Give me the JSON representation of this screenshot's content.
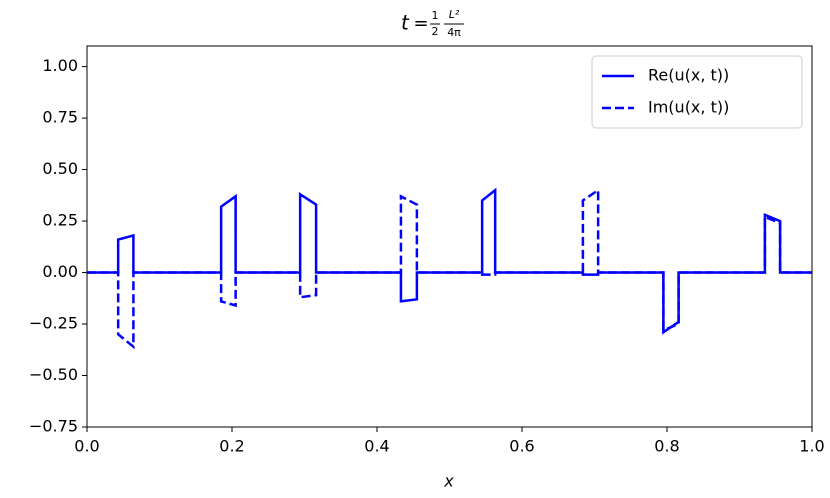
{
  "chart_data": {
    "type": "line",
    "title": {
      "variable": "t",
      "equals": "=",
      "fraction_1": {
        "numerator": "1",
        "denominator": "2"
      },
      "fraction_2": {
        "numerator": "L²",
        "denominator": "4π"
      }
    },
    "x_label": "x",
    "x": [
      0,
      0.043,
      0.043,
      0.064,
      0.064,
      0.185,
      0.185,
      0.205,
      0.205,
      0.294,
      0.294,
      0.316,
      0.316,
      0.433,
      0.433,
      0.455,
      0.455,
      0.545,
      0.545,
      0.563,
      0.563,
      0.684,
      0.684,
      0.705,
      0.705,
      0.795,
      0.795,
      0.816,
      0.816,
      0.935,
      0.935,
      0.956,
      0.956,
      1.0
    ],
    "series": [
      {
        "name": "Re(u(x, t))",
        "color": "#0000ff",
        "linestyle": "solid",
        "values": [
          0,
          0,
          0.16,
          0.18,
          0,
          0,
          0.32,
          0.37,
          0,
          0,
          0.38,
          0.33,
          0,
          0,
          -0.14,
          -0.13,
          0,
          0,
          0.35,
          0.4,
          0,
          0,
          -0.01,
          -0.01,
          0,
          0,
          -0.29,
          -0.24,
          0,
          0,
          0.28,
          0.25,
          0,
          0
        ]
      },
      {
        "name": "Im(u(x, t))",
        "color": "#0000ff",
        "linestyle": "dashed",
        "values": [
          0,
          0,
          -0.3,
          -0.36,
          0,
          0,
          -0.14,
          -0.16,
          0,
          0,
          -0.12,
          -0.11,
          0,
          0,
          0.37,
          0.33,
          0,
          0,
          -0.01,
          -0.01,
          0,
          0,
          0.35,
          0.4,
          0,
          0,
          -0.28,
          -0.25,
          0,
          0,
          0.27,
          0.24,
          0,
          0
        ]
      }
    ],
    "xlim": [
      0,
      1
    ],
    "ylim": [
      -0.75,
      1.1
    ],
    "xticks": [
      {
        "value": 0,
        "label": "0.0"
      },
      0.2,
      0.4,
      0.6,
      0.8,
      {
        "value": 1,
        "label": "1.0"
      }
    ],
    "yticks": [
      {
        "value": -0.75,
        "label": "−0.75"
      },
      {
        "value": -0.5,
        "label": "−0.50"
      },
      {
        "value": -0.25,
        "label": "−0.25"
      },
      {
        "value": 0,
        "label": "0.00"
      },
      {
        "value": 0.25,
        "label": "0.25"
      },
      {
        "value": 0.5,
        "label": "0.50"
      },
      {
        "value": 0.75,
        "label": "0.75"
      },
      {
        "value": 1,
        "label": "1.00"
      }
    ],
    "grid": false,
    "legend": "upper right"
  }
}
